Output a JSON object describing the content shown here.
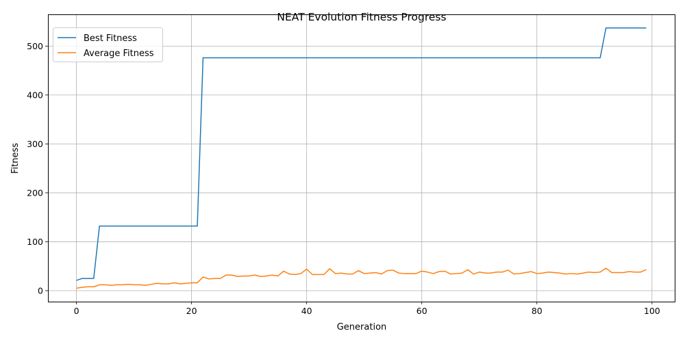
{
  "chart_data": {
    "type": "line",
    "title": "NEAT Evolution Fitness Progress",
    "xlabel": "Generation",
    "ylabel": "Fitness",
    "xlim": [
      -4.95,
      103.95
    ],
    "ylim": [
      -22.4,
      564.8
    ],
    "xticks": [
      0,
      20,
      40,
      60,
      80,
      100
    ],
    "yticks": [
      0,
      100,
      200,
      300,
      400,
      500
    ],
    "grid": true,
    "legend_position": "top-left",
    "x": [
      0,
      1,
      2,
      3,
      4,
      5,
      6,
      7,
      8,
      9,
      10,
      11,
      12,
      13,
      14,
      15,
      16,
      17,
      18,
      19,
      20,
      21,
      22,
      23,
      24,
      25,
      26,
      27,
      28,
      29,
      30,
      31,
      32,
      33,
      34,
      35,
      36,
      37,
      38,
      39,
      40,
      41,
      42,
      43,
      44,
      45,
      46,
      47,
      48,
      49,
      50,
      51,
      52,
      53,
      54,
      55,
      56,
      57,
      58,
      59,
      60,
      61,
      62,
      63,
      64,
      65,
      66,
      67,
      68,
      69,
      70,
      71,
      72,
      73,
      74,
      75,
      76,
      77,
      78,
      79,
      80,
      81,
      82,
      83,
      84,
      85,
      86,
      87,
      88,
      89,
      90,
      91,
      92,
      93,
      94,
      95,
      96,
      97,
      98,
      99
    ],
    "series": [
      {
        "name": "Best Fitness",
        "color": "#1f77b4",
        "values": [
          21,
          25,
          25,
          25,
          132,
          132,
          132,
          132,
          132,
          132,
          132,
          132,
          132,
          132,
          132,
          132,
          132,
          132,
          132,
          132,
          132,
          132,
          476,
          476,
          476,
          476,
          476,
          476,
          476,
          476,
          476,
          476,
          476,
          476,
          476,
          476,
          476,
          476,
          476,
          476,
          476,
          476,
          476,
          476,
          476,
          476,
          476,
          476,
          476,
          476,
          476,
          476,
          476,
          476,
          476,
          476,
          476,
          476,
          476,
          476,
          476,
          476,
          476,
          476,
          476,
          476,
          476,
          476,
          476,
          476,
          476,
          476,
          476,
          476,
          476,
          476,
          476,
          476,
          476,
          476,
          476,
          476,
          476,
          476,
          476,
          476,
          476,
          476,
          476,
          476,
          476,
          476,
          537,
          537,
          537,
          537,
          537,
          537,
          537,
          537
        ]
      },
      {
        "name": "Average Fitness",
        "color": "#ff7f0e",
        "values": [
          5,
          7,
          8,
          8,
          12,
          12,
          11,
          12,
          12,
          13,
          12,
          12,
          11,
          13,
          15,
          14,
          14,
          16,
          14,
          15,
          16,
          16,
          28,
          24,
          25,
          25,
          32,
          32,
          29,
          30,
          30,
          32,
          29,
          30,
          32,
          30,
          40,
          34,
          33,
          35,
          44,
          33,
          33,
          33,
          45,
          35,
          36,
          34,
          34,
          41,
          35,
          36,
          37,
          34,
          41,
          42,
          36,
          35,
          35,
          35,
          40,
          38,
          35,
          39,
          40,
          34,
          35,
          36,
          43,
          34,
          38,
          36,
          36,
          38,
          38,
          42,
          34,
          35,
          37,
          39,
          35,
          36,
          38,
          37,
          36,
          34,
          35,
          34,
          36,
          38,
          37,
          38,
          46,
          37,
          37,
          37,
          39,
          38,
          38,
          43
        ]
      }
    ]
  }
}
